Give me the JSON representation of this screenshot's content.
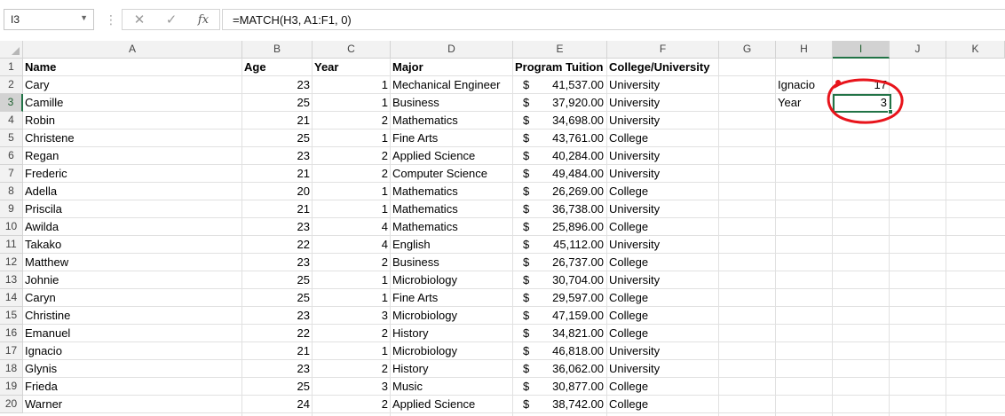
{
  "formula_bar": {
    "name_box": "I3",
    "cancel_icon": "cancel-icon",
    "enter_icon": "enter-icon",
    "function_label": "fx",
    "formula": "=MATCH(H3, A1:F1, 0)"
  },
  "columns": [
    "A",
    "B",
    "C",
    "D",
    "E",
    "F",
    "G",
    "H",
    "I",
    "J",
    "K"
  ],
  "rows": [
    "1",
    "2",
    "3",
    "4",
    "5",
    "6",
    "7",
    "8",
    "9",
    "10",
    "11",
    "12",
    "13",
    "14",
    "15",
    "16",
    "17",
    "18",
    "19",
    "20"
  ],
  "headers": {
    "name": "Name",
    "age": "Age",
    "year": "Year",
    "major": "Major",
    "tuition": "Program Tuition",
    "college": "College/University"
  },
  "data_rows": [
    {
      "name": "Cary",
      "age": "23",
      "year": "1",
      "major": "Mechanical Engineer",
      "currency": "$",
      "tuition": "41,537.00",
      "college": "University"
    },
    {
      "name": "Camille",
      "age": "25",
      "year": "1",
      "major": "Business",
      "currency": "$",
      "tuition": "37,920.00",
      "college": "University"
    },
    {
      "name": "Robin",
      "age": "21",
      "year": "2",
      "major": "Mathematics",
      "currency": "$",
      "tuition": "34,698.00",
      "college": "University"
    },
    {
      "name": "Christene",
      "age": "25",
      "year": "1",
      "major": "Fine Arts",
      "currency": "$",
      "tuition": "43,761.00",
      "college": "College"
    },
    {
      "name": "Regan",
      "age": "23",
      "year": "2",
      "major": "Applied Science",
      "currency": "$",
      "tuition": "40,284.00",
      "college": "University"
    },
    {
      "name": "Frederic",
      "age": "21",
      "year": "2",
      "major": "Computer Science",
      "currency": "$",
      "tuition": "49,484.00",
      "college": "University"
    },
    {
      "name": "Adella",
      "age": "20",
      "year": "1",
      "major": "Mathematics",
      "currency": "$",
      "tuition": "26,269.00",
      "college": "College"
    },
    {
      "name": "Priscila",
      "age": "21",
      "year": "1",
      "major": "Mathematics",
      "currency": "$",
      "tuition": "36,738.00",
      "college": "University"
    },
    {
      "name": "Awilda",
      "age": "23",
      "year": "4",
      "major": "Mathematics",
      "currency": "$",
      "tuition": "25,896.00",
      "college": "College"
    },
    {
      "name": "Takako",
      "age": "22",
      "year": "4",
      "major": "English",
      "currency": "$",
      "tuition": "45,112.00",
      "college": "University"
    },
    {
      "name": "Matthew",
      "age": "23",
      "year": "2",
      "major": "Business",
      "currency": "$",
      "tuition": "26,737.00",
      "college": "College"
    },
    {
      "name": "Johnie",
      "age": "25",
      "year": "1",
      "major": "Microbiology",
      "currency": "$",
      "tuition": "30,704.00",
      "college": "University"
    },
    {
      "name": "Caryn",
      "age": "25",
      "year": "1",
      "major": "Fine Arts",
      "currency": "$",
      "tuition": "29,597.00",
      "college": "College"
    },
    {
      "name": "Christine",
      "age": "23",
      "year": "3",
      "major": "Microbiology",
      "currency": "$",
      "tuition": "47,159.00",
      "college": "College"
    },
    {
      "name": "Emanuel",
      "age": "22",
      "year": "2",
      "major": "History",
      "currency": "$",
      "tuition": "34,821.00",
      "college": "College"
    },
    {
      "name": "Ignacio",
      "age": "21",
      "year": "1",
      "major": "Microbiology",
      "currency": "$",
      "tuition": "46,818.00",
      "college": "University"
    },
    {
      "name": "Glynis",
      "age": "23",
      "year": "2",
      "major": "History",
      "currency": "$",
      "tuition": "36,062.00",
      "college": "University"
    },
    {
      "name": "Frieda",
      "age": "25",
      "year": "3",
      "major": "Music",
      "currency": "$",
      "tuition": "30,877.00",
      "college": "College"
    },
    {
      "name": "Warner",
      "age": "24",
      "year": "2",
      "major": "Applied Science",
      "currency": "$",
      "tuition": "38,742.00",
      "college": "College"
    }
  ],
  "side_cells": {
    "h2": "Ignacio",
    "i2": "17",
    "h3": "Year",
    "i3": "3"
  },
  "colors": {
    "selection": "#217346",
    "annotation": "#e8141b",
    "gridline": "#e1e1e1",
    "header_bg": "#f2f2f2"
  },
  "annotation": {
    "shape": "hand-drawn-circle",
    "target": "I2:I3"
  }
}
